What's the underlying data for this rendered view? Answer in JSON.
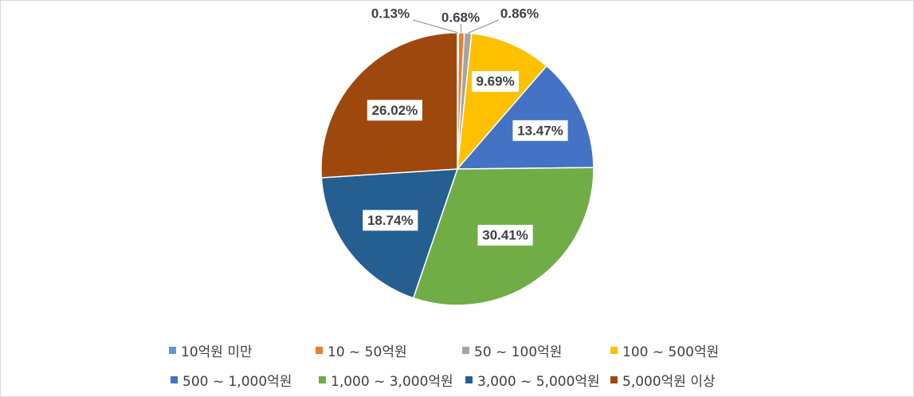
{
  "chart_data": {
    "type": "pie",
    "categories": [
      "10억원 미만",
      "10 ~ 50억원",
      "50 ~ 100억원",
      "100 ~ 500억원",
      "500 ~ 1,000억원",
      "1,000 ~ 3,000억원",
      "3,000 ~ 5,000억원",
      "5,000억원 이상"
    ],
    "values": [
      0.13,
      0.68,
      0.86,
      9.69,
      13.47,
      30.41,
      18.74,
      26.02
    ],
    "labels": [
      "0.13%",
      "0.68%",
      "0.86%",
      "9.69%",
      "13.47%",
      "30.41%",
      "18.74%",
      "26.02%"
    ],
    "colors": [
      "#5b9bd5",
      "#ed7d31",
      "#a5a5a5",
      "#ffc000",
      "#4472c4",
      "#70ad47",
      "#255e91",
      "#9e480e"
    ],
    "legend": "bottom",
    "start_angle": "12 o'clock",
    "direction": "clockwise"
  }
}
